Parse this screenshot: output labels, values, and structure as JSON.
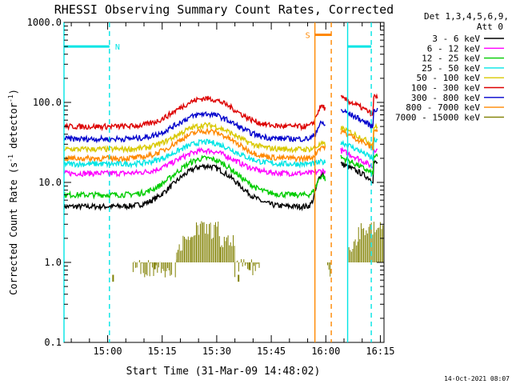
{
  "chart_data": {
    "type": "line",
    "title": "RHESSI Observing Summary Count Rates, Corrected",
    "xlabel": "Start Time (31-Mar-09 14:48:02)",
    "ylabel_main": "Corrected Count Rate (s",
    "ylabel_sup1": "-1",
    "ylabel_mid": " detector",
    "ylabel_sup2": "-1",
    "ylabel_end": ")",
    "y_scale": "log",
    "ylim": [
      0.1,
      1000
    ],
    "xlim_minutes": [
      48,
      136
    ],
    "x_ticks": [
      {
        "label": "15:00",
        "min": 60
      },
      {
        "label": "15:15",
        "min": 75
      },
      {
        "label": "15:30",
        "min": 90
      },
      {
        "label": "15:45",
        "min": 105
      },
      {
        "label": "16:00",
        "min": 120
      },
      {
        "label": "16:15",
        "min": 135
      }
    ],
    "y_ticks": [
      {
        "label": "1000.0",
        "v": 1000
      },
      {
        "label": "100.0",
        "v": 100
      },
      {
        "label": "10.0",
        "v": 10
      },
      {
        "label": "1.0",
        "v": 1
      },
      {
        "label": "0.1",
        "v": 0.1
      }
    ],
    "legend_header_1": "Det 1,3,4,5,6,9,",
    "legend_header_2": "Att 0",
    "legend_position": "right",
    "series": [
      {
        "name": "3 - 6 keV",
        "color": "#000000",
        "base": 5.0,
        "peak": 16,
        "flare": 13,
        "post": 15
      },
      {
        "name": "6 - 12 keV",
        "color": "#ff00ff",
        "base": 13,
        "peak": 25,
        "flare": 14,
        "post": 22
      },
      {
        "name": "12 - 25 keV",
        "color": "#00cc00",
        "base": 7,
        "peak": 20,
        "flare": 12,
        "post": 18
      },
      {
        "name": "25 - 50 keV",
        "color": "#00e5e5",
        "base": 17,
        "peak": 32,
        "flare": 18,
        "post": 28
      },
      {
        "name": "50 - 100 keV",
        "color": "#d9c800",
        "base": 26,
        "peak": 52,
        "flare": 30,
        "post": 42
      },
      {
        "name": "100 - 300 keV",
        "color": "#dd0000",
        "base": 50,
        "peak": 112,
        "flare": 90,
        "post": 100
      },
      {
        "name": "300 - 800 keV",
        "color": "#0000cc",
        "base": 35,
        "peak": 72,
        "flare": 55,
        "post": 70
      },
      {
        "name": "800 - 7000 keV",
        "color": "#ff8800",
        "base": 20,
        "peak": 44,
        "flare": 28,
        "post": 38
      },
      {
        "name": "7000 - 15000 keV",
        "color": "#808000",
        "base": 1.0,
        "peak": 3.0,
        "flare": 1.0,
        "post": 3.0
      }
    ],
    "annotations": [
      {
        "label": "N",
        "color": "#00e5e5",
        "type": "night",
        "from_min": 48,
        "to_min": 60.5
      },
      {
        "label": "",
        "color": "#00e5e5",
        "type": "night",
        "from_min": 126,
        "to_min": 132.5
      },
      {
        "label": "S",
        "color": "#ff8800",
        "type": "saa",
        "from_min": 117,
        "to_min": 121.5
      }
    ],
    "footer_date": "14-Oct-2021 08:07"
  }
}
